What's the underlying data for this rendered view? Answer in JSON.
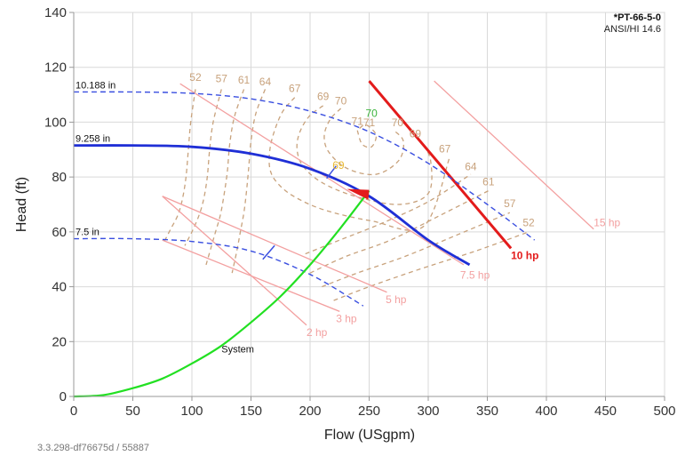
{
  "chart_data": {
    "type": "line",
    "title": "*PT-66-5-0",
    "subtitle": "ANSI/HI 14.6",
    "xlabel": "Flow (USgpm)",
    "ylabel": "Head (ft)",
    "xlim": [
      0,
      500
    ],
    "ylim": [
      0,
      140
    ],
    "xticks": [
      0,
      50,
      100,
      150,
      200,
      250,
      300,
      350,
      400,
      450,
      500
    ],
    "yticks": [
      0,
      20,
      40,
      60,
      80,
      100,
      120,
      140
    ],
    "grid": true,
    "colors": {
      "impeller_selected": "#1f2fd6",
      "impeller_other": "#3a4fe0",
      "system": "#22e022",
      "efficiency": "#c8a27c",
      "power": "#f3a0a0",
      "power_selected": "#e31b1b",
      "eff_best": "#3cb43c",
      "eff_highlight": "#e8b830",
      "operating_point": "#e31b1b"
    },
    "impeller_curves": [
      {
        "name": "10.188 in",
        "style": "dashed",
        "x": [
          0,
          50,
          100,
          150,
          200,
          250,
          300,
          350,
          390
        ],
        "y": [
          111,
          111,
          110.5,
          108.5,
          104,
          96.5,
          85,
          70,
          57
        ]
      },
      {
        "name": "9.258 in",
        "style": "solid",
        "x": [
          0,
          50,
          100,
          150,
          200,
          250,
          300,
          335
        ],
        "y": [
          91.5,
          91.5,
          91,
          88.5,
          83,
          73,
          57,
          48
        ]
      },
      {
        "name": "7.5 in",
        "style": "dashed",
        "x": [
          0,
          50,
          100,
          150,
          200,
          245
        ],
        "y": [
          57.5,
          57.5,
          56.5,
          53,
          44.5,
          33
        ]
      }
    ],
    "system_curve": {
      "name": "System",
      "x": [
        0,
        25,
        50,
        75,
        100,
        125,
        150,
        175,
        200,
        225,
        250
      ],
      "y": [
        0,
        0.5,
        3,
        6.5,
        12,
        18.5,
        27,
        36.5,
        48,
        61,
        75
      ]
    },
    "operating_point": {
      "x": 250,
      "y": 75
    },
    "efficiency_labels": [
      {
        "text": "52",
        "x": 103,
        "y": 115,
        "color": "efficiency"
      },
      {
        "text": "57",
        "x": 125,
        "y": 114.5,
        "color": "efficiency"
      },
      {
        "text": "61",
        "x": 144,
        "y": 114,
        "color": "efficiency"
      },
      {
        "text": "64",
        "x": 162,
        "y": 113.5,
        "color": "efficiency"
      },
      {
        "text": "67",
        "x": 187,
        "y": 111,
        "color": "efficiency"
      },
      {
        "text": "69",
        "x": 211,
        "y": 108,
        "color": "efficiency"
      },
      {
        "text": "70",
        "x": 226,
        "y": 106.5,
        "color": "efficiency"
      },
      {
        "text": "70",
        "x": 252,
        "y": 102,
        "color": "eff_best"
      },
      {
        "text": "71",
        "x": 240,
        "y": 99,
        "color": "efficiency"
      },
      {
        "text": "71",
        "x": 250,
        "y": 98.5,
        "color": "efficiency"
      },
      {
        "text": "70",
        "x": 274,
        "y": 98.5,
        "color": "efficiency"
      },
      {
        "text": "69",
        "x": 289,
        "y": 94.5,
        "color": "efficiency"
      },
      {
        "text": "67",
        "x": 314,
        "y": 89,
        "color": "efficiency"
      },
      {
        "text": "64",
        "x": 336,
        "y": 82.5,
        "color": "efficiency"
      },
      {
        "text": "61",
        "x": 351,
        "y": 77,
        "color": "efficiency"
      },
      {
        "text": "57",
        "x": 369,
        "y": 69,
        "color": "efficiency"
      },
      {
        "text": "52",
        "x": 385,
        "y": 62,
        "color": "efficiency"
      },
      {
        "text": "69",
        "x": 224,
        "y": 83,
        "color": "eff_highlight"
      }
    ],
    "power_lines": [
      {
        "label": "2 hp",
        "x": [
          75,
          197
        ],
        "y": [
          73,
          26
        ],
        "label_x": 197,
        "label_y": 22,
        "selected": false
      },
      {
        "label": "3 hp",
        "x": [
          75,
          225
        ],
        "y": [
          57,
          31
        ],
        "label_x": 222,
        "label_y": 27,
        "selected": false
      },
      {
        "label": "5 hp",
        "x": [
          75,
          265
        ],
        "y": [
          73,
          38
        ],
        "label_x": 264,
        "label_y": 34,
        "selected": false
      },
      {
        "label": "7.5 hp",
        "x": [
          90,
          330
        ],
        "y": [
          114,
          48
        ],
        "label_x": 327,
        "label_y": 43,
        "selected": false
      },
      {
        "label": "10 hp",
        "x": [
          250,
          370
        ],
        "y": [
          115,
          54
        ],
        "label_x": 370,
        "label_y": 50,
        "selected": true
      },
      {
        "label": "15 hp",
        "x": [
          305,
          440
        ],
        "y": [
          115,
          61
        ],
        "label_x": 440,
        "label_y": 62,
        "selected": false
      }
    ],
    "efficiency_contours": [
      {
        "x": [
          103,
          99,
          97,
          95,
          92,
          88,
          82,
          76
        ],
        "y": [
          112,
          100,
          90,
          80,
          72,
          66,
          61,
          56
        ]
      },
      {
        "x": [
          125,
          118,
          115,
          113,
          110,
          106,
          100,
          94
        ],
        "y": [
          112,
          100,
          90,
          80,
          72,
          66,
          60,
          55
        ]
      },
      {
        "x": [
          144,
          136,
          132,
          130,
          127,
          124,
          120,
          116,
          112
        ],
        "y": [
          112,
          102,
          92,
          82,
          73,
          66,
          60,
          54,
          48
        ]
      },
      {
        "x": [
          162,
          154,
          150,
          148,
          146,
          144,
          141,
          138,
          134
        ],
        "y": [
          112,
          103,
          93,
          83,
          74,
          67,
          60,
          53,
          45
        ]
      },
      {
        "x": [
          187,
          177,
          170,
          166,
          166,
          172,
          186,
          212,
          252,
          296,
          318
        ],
        "y": [
          109,
          104,
          97,
          90,
          83,
          78,
          73,
          68,
          64,
          62,
          87
        ]
      },
      {
        "x": [
          211,
          199,
          191,
          189,
          194,
          210,
          238,
          275,
          300,
          302,
          294
        ],
        "y": [
          106,
          102,
          96,
          90,
          84,
          78,
          73,
          70,
          74,
          86,
          93
        ]
      },
      {
        "x": [
          226,
          217,
          212,
          216,
          232,
          256,
          275,
          279,
          271
        ],
        "y": [
          105,
          101,
          95,
          89,
          83,
          81,
          86,
          93,
          97
        ]
      },
      {
        "x": [
          240,
          244,
          252,
          256,
          251,
          246,
          240
        ],
        "y": [
          97,
          92,
          91,
          95,
          98,
          99,
          97
        ]
      },
      {
        "x": [
          196,
          225,
          260,
          300,
          336
        ],
        "y": [
          52,
          57,
          63,
          71,
          81
        ]
      },
      {
        "x": [
          200,
          230,
          268,
          310,
          351
        ],
        "y": [
          45,
          51,
          57,
          66,
          75
        ]
      },
      {
        "x": [
          210,
          240,
          280,
          325,
          369
        ],
        "y": [
          40,
          45,
          51,
          59,
          67
        ]
      },
      {
        "x": [
          220,
          250,
          290,
          340,
          385
        ],
        "y": [
          35,
          40,
          46,
          53,
          60
        ]
      }
    ],
    "speed_ticks": [
      {
        "x": [
          214,
          222
        ],
        "y": [
          79.5,
          84
        ]
      },
      {
        "x": [
          160,
          170
        ],
        "y": [
          50,
          55
        ]
      }
    ]
  },
  "footer": {
    "version": "3.3.298-df76675d / 55887"
  }
}
